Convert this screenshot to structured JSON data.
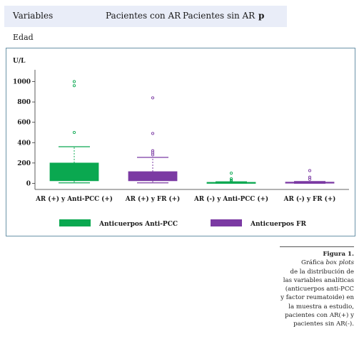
{
  "table_header": {
    "variables": "Variables",
    "con_ar": "Pacientes con AR",
    "sin_ar": "Pacientes sin AR",
    "p": "p"
  },
  "row_label": "Edad",
  "colors": {
    "anti_pcc": "#0aa850",
    "fr": "#7b3aa3",
    "frame": "#6a93a8"
  },
  "chart_data": {
    "type": "boxplot",
    "ylabel": "U/L",
    "ylim": [
      -60,
      1060
    ],
    "yticks": [
      0,
      200,
      400,
      600,
      800,
      1000
    ],
    "categories": [
      "AR (+) y Anti-PCC (+)",
      "AR (+) y FR (+)",
      "AR (-) y Anti-PCC (+)",
      "AR (-)  y FR (+)"
    ],
    "legend": [
      "Anticuerpos Anti-PCC",
      "Anticuerpos FR"
    ],
    "legend_position": "bottom",
    "boxes": [
      {
        "series": "Anticuerpos Anti-PCC",
        "min": 5,
        "q1": 25,
        "median": 55,
        "q3": 200,
        "max": 360,
        "outliers": [
          500,
          960,
          1000
        ]
      },
      {
        "series": "Anticuerpos FR",
        "min": 5,
        "q1": 25,
        "median": 45,
        "q3": 115,
        "max": 255,
        "outliers": [
          280,
          300,
          320,
          490,
          840
        ]
      },
      {
        "series": "Anticuerpos Anti-PCC",
        "min": 0,
        "q1": 2,
        "median": 5,
        "q3": 10,
        "max": 15,
        "outliers": [
          20,
          30,
          45,
          100
        ]
      },
      {
        "series": "Anticuerpos FR",
        "min": 0,
        "q1": 3,
        "median": 6,
        "q3": 12,
        "max": 18,
        "outliers": [
          40,
          60,
          125
        ]
      }
    ]
  },
  "caption": {
    "label": "Figura 1.",
    "line1": "Gráfica",
    "line1_em": "box plots",
    "lines": [
      "de la distribución de",
      "las variables analíticas",
      "(anticuerpos anti-PCC",
      "y factor reumatoide) en",
      "la muestra a estudio,",
      "pacientes con AR(+) y",
      "pacientes sin AR(-)."
    ]
  }
}
